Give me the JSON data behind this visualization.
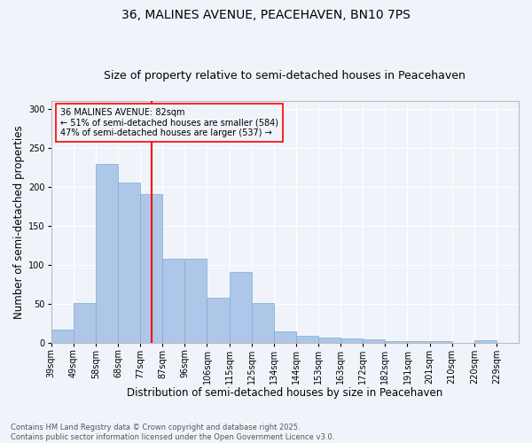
{
  "title_line1": "36, MALINES AVENUE, PEACEHAVEN, BN10 7PS",
  "title_line2": "Size of property relative to semi-detached houses in Peacehaven",
  "xlabel": "Distribution of semi-detached houses by size in Peacehaven",
  "ylabel": "Number of semi-detached properties",
  "footnote": "Contains HM Land Registry data © Crown copyright and database right 2025.\nContains public sector information licensed under the Open Government Licence v3.0.",
  "categories": [
    "39sqm",
    "49sqm",
    "58sqm",
    "68sqm",
    "77sqm",
    "87sqm",
    "96sqm",
    "106sqm",
    "115sqm",
    "125sqm",
    "134sqm",
    "144sqm",
    "153sqm",
    "163sqm",
    "172sqm",
    "182sqm",
    "191sqm",
    "201sqm",
    "210sqm",
    "220sqm",
    "229sqm"
  ],
  "values": [
    16,
    51,
    229,
    205,
    191,
    108,
    108,
    58,
    91,
    51,
    14,
    9,
    6,
    5,
    4,
    2,
    2,
    2,
    0,
    3,
    0
  ],
  "bar_color": "#aec6e8",
  "bar_edge_color": "#7badd4",
  "vline_x": 4.5,
  "vline_color": "red",
  "annotation_title": "36 MALINES AVENUE: 82sqm",
  "annotation_line1": "← 51% of semi-detached houses are smaller (584)",
  "annotation_line2": "47% of semi-detached houses are larger (537) →",
  "annotation_box_color": "red",
  "ylim": [
    0,
    310
  ],
  "yticks": [
    0,
    50,
    100,
    150,
    200,
    250,
    300
  ],
  "background_color": "#f0f4fa",
  "grid_color": "#ffffff",
  "title_fontsize": 10,
  "subtitle_fontsize": 9,
  "axis_label_fontsize": 8.5,
  "tick_fontsize": 7,
  "annot_fontsize": 7
}
